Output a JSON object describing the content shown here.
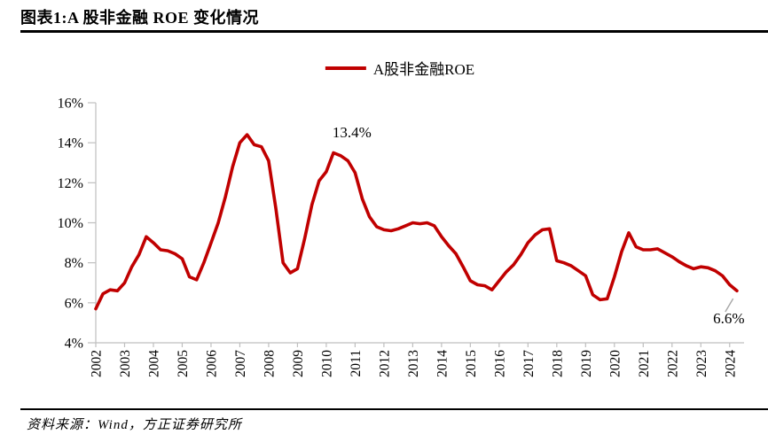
{
  "figure": {
    "title": "图表1:A 股非金融 ROE 变化情况",
    "source": "资料来源：Wind，方正证券研究所"
  },
  "legend": {
    "label": "A股非金融ROE"
  },
  "colors": {
    "line": "#c00000",
    "axis": "#bfbfbf",
    "text": "#000000",
    "leader": "#a6a6a6",
    "background": "#ffffff"
  },
  "chart_data": {
    "type": "line",
    "title": "A股非金融ROE",
    "xlabel": "",
    "ylabel": "",
    "xlim": [
      2002,
      2024.5
    ],
    "ylim": [
      4,
      16
    ],
    "yticks": [
      4,
      6,
      8,
      10,
      12,
      14,
      16
    ],
    "ytick_suffix": "%",
    "xticks": [
      2002,
      2003,
      2004,
      2005,
      2006,
      2007,
      2008,
      2009,
      2010,
      2011,
      2012,
      2013,
      2014,
      2015,
      2016,
      2017,
      2018,
      2019,
      2020,
      2021,
      2022,
      2023,
      2024
    ],
    "grid": false,
    "legend_position": "top-center",
    "series": [
      {
        "name": "A股非金融ROE",
        "color": "#c00000",
        "x": [
          2002.0,
          2002.25,
          2002.5,
          2002.75,
          2003.0,
          2003.25,
          2003.5,
          2003.75,
          2004.0,
          2004.25,
          2004.5,
          2004.75,
          2005.0,
          2005.25,
          2005.5,
          2005.75,
          2006.0,
          2006.25,
          2006.5,
          2006.75,
          2007.0,
          2007.25,
          2007.5,
          2007.75,
          2008.0,
          2008.25,
          2008.5,
          2008.75,
          2009.0,
          2009.25,
          2009.5,
          2009.75,
          2010.0,
          2010.25,
          2010.5,
          2010.75,
          2011.0,
          2011.25,
          2011.5,
          2011.75,
          2012.0,
          2012.25,
          2012.5,
          2012.75,
          2013.0,
          2013.25,
          2013.5,
          2013.75,
          2014.0,
          2014.25,
          2014.5,
          2014.75,
          2015.0,
          2015.25,
          2015.5,
          2015.75,
          2016.0,
          2016.25,
          2016.5,
          2016.75,
          2017.0,
          2017.25,
          2017.5,
          2017.75,
          2018.0,
          2018.25,
          2018.5,
          2018.75,
          2019.0,
          2019.25,
          2019.5,
          2019.75,
          2020.0,
          2020.25,
          2020.5,
          2020.75,
          2021.0,
          2021.25,
          2021.5,
          2021.75,
          2022.0,
          2022.25,
          2022.5,
          2022.75,
          2023.0,
          2023.25,
          2023.5,
          2023.75,
          2024.0,
          2024.25
        ],
        "y": [
          5.7,
          6.45,
          6.65,
          6.6,
          7.0,
          7.8,
          8.4,
          9.3,
          9.0,
          8.65,
          8.6,
          8.45,
          8.2,
          7.3,
          7.15,
          8.0,
          9.0,
          10.0,
          11.3,
          12.8,
          14.0,
          14.4,
          13.9,
          13.8,
          13.1,
          10.7,
          8.0,
          7.5,
          7.7,
          9.2,
          10.9,
          12.1,
          12.55,
          13.5,
          13.35,
          13.1,
          12.5,
          11.2,
          10.3,
          9.8,
          9.65,
          9.6,
          9.7,
          9.85,
          10.0,
          9.95,
          10.0,
          9.85,
          9.3,
          8.85,
          8.45,
          7.8,
          7.1,
          6.9,
          6.85,
          6.65,
          7.1,
          7.55,
          7.9,
          8.4,
          9.0,
          9.4,
          9.65,
          9.7,
          8.1,
          8.0,
          7.85,
          7.6,
          7.35,
          6.4,
          6.15,
          6.2,
          7.3,
          8.55,
          9.5,
          8.8,
          8.65,
          8.65,
          8.7,
          8.5,
          8.3,
          8.05,
          7.85,
          7.7,
          7.8,
          7.75,
          7.6,
          7.35,
          6.9,
          6.6
        ]
      }
    ],
    "annotations": [
      {
        "text": "13.4%",
        "x": 2010.89,
        "y": 14.27
      },
      {
        "text": "6.6%",
        "x": 2023.97,
        "y": 4.97,
        "leader": {
          "x1": 2023.85,
          "y1": 5.55,
          "x2": 2024.12,
          "y2": 6.21
        }
      }
    ]
  }
}
